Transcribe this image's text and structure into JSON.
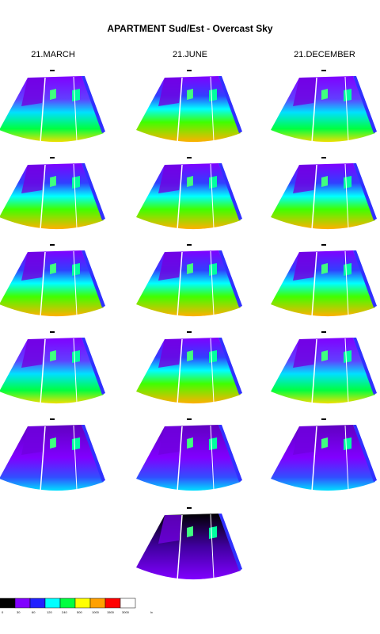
{
  "header": {
    "title": "APARTMENT Sud/Est - Overcast Sky"
  },
  "columns": [
    "21.MARCH",
    "21.JUNE",
    "21.DECEMBER"
  ],
  "legend": {
    "labels": [
      "0",
      "30",
      "60",
      "120",
      "240",
      "500",
      "1000",
      "1500",
      "3000"
    ],
    "colors": [
      "#000000",
      "#8000ff",
      "#2020ff",
      "#00ffff",
      "#00ff40",
      "#ffff00",
      "#ffa000",
      "#ff0000",
      "#ffffff"
    ],
    "unit": "lx"
  }
}
